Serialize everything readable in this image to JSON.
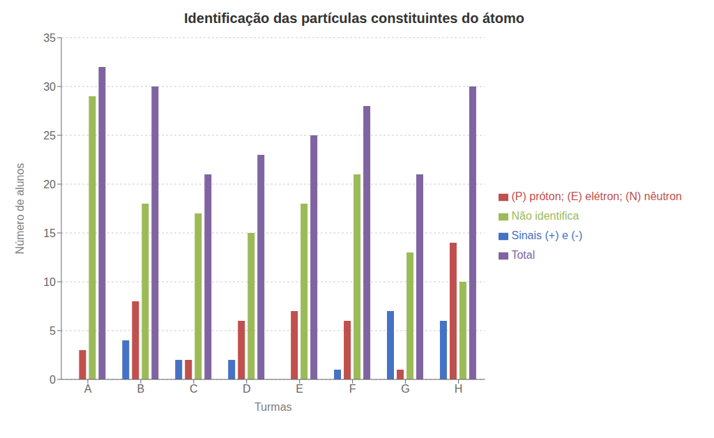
{
  "chart_data": {
    "type": "bar",
    "title": "Identificação das partículas constituintes do átomo",
    "xlabel": "Turmas",
    "ylabel": "Número de alunos",
    "categories": [
      "A",
      "B",
      "C",
      "D",
      "E",
      "F",
      "G",
      "H"
    ],
    "series": [
      {
        "name": "Sinais (+) e (-)",
        "color": "#4472C4",
        "values": [
          0,
          4,
          2,
          2,
          0,
          1,
          7,
          6
        ]
      },
      {
        "name": "(P) próton; (E) elétron; (N) nêutron",
        "color": "#C0504D",
        "values": [
          3,
          8,
          2,
          6,
          7,
          6,
          1,
          14
        ]
      },
      {
        "name": "Não identifica",
        "color": "#9BBB59",
        "values": [
          29,
          18,
          17,
          15,
          18,
          21,
          13,
          10
        ]
      },
      {
        "name": "Total",
        "color": "#8064A2",
        "values": [
          32,
          30,
          21,
          23,
          25,
          28,
          21,
          30
        ]
      }
    ],
    "ylim": [
      0,
      35
    ],
    "yticks": [
      0,
      5,
      10,
      15,
      20,
      25,
      30,
      35
    ],
    "grid": true,
    "legend": "right"
  }
}
